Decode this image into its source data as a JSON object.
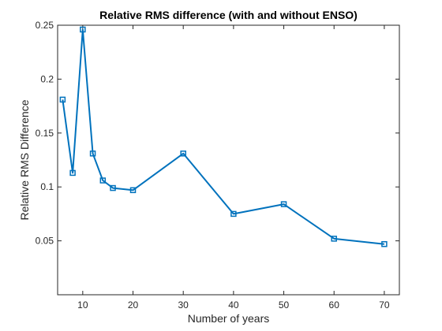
{
  "chart_data": {
    "type": "line",
    "title": "Relative RMS difference (with and without ENSO)",
    "xlabel": "Number of years",
    "ylabel": "Relative RMS Difference",
    "xlim": [
      5,
      73
    ],
    "ylim": [
      0,
      0.25
    ],
    "x_ticks": [
      "10",
      "20",
      "30",
      "40",
      "50",
      "60",
      "70"
    ],
    "y_ticks": [
      "0.05",
      "0.1",
      "0.15",
      "0.2",
      "0.25"
    ],
    "grid": false,
    "marker": "square",
    "color": "#0072BD",
    "x": [
      6,
      8,
      10,
      12,
      14,
      16,
      20,
      30,
      40,
      50,
      60,
      70
    ],
    "y": [
      0.181,
      0.113,
      0.246,
      0.131,
      0.106,
      0.099,
      0.097,
      0.131,
      0.075,
      0.084,
      0.052,
      0.047
    ]
  }
}
